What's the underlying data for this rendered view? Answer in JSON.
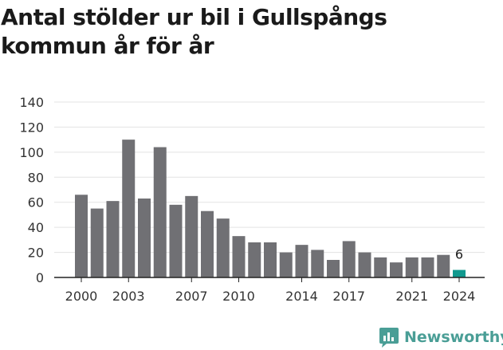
{
  "title": "Antal stölder ur bil i Gullspångs kommun år för år",
  "chart_data": {
    "type": "bar",
    "title": "Antal stölder ur bil i Gullspångs kommun år för år",
    "xlabel": "",
    "ylabel": "",
    "categories": [
      "2000",
      "2001",
      "2002",
      "2003",
      "2004",
      "2005",
      "2006",
      "2007",
      "2008",
      "2009",
      "2010",
      "2011",
      "2012",
      "2013",
      "2014",
      "2015",
      "2016",
      "2017",
      "2018",
      "2019",
      "2020",
      "2021",
      "2022",
      "2023",
      "2024"
    ],
    "values": [
      66,
      55,
      61,
      110,
      63,
      104,
      58,
      65,
      53,
      47,
      33,
      28,
      28,
      20,
      26,
      22,
      14,
      29,
      20,
      16,
      12,
      16,
      16,
      18,
      6
    ],
    "x_tick_labels": [
      "2000",
      "2003",
      "2007",
      "2010",
      "2014",
      "2017",
      "2021",
      "2024"
    ],
    "y_ticks": [
      0,
      20,
      40,
      60,
      80,
      100,
      120,
      140
    ],
    "ylim": [
      0,
      140
    ],
    "grid": true,
    "legend": "none",
    "data_labels": [
      {
        "category": "2024",
        "text": "6"
      }
    ],
    "colors": {
      "bar": "#707074",
      "highlight": "#11998e",
      "grid": "#e3e3e3"
    }
  },
  "brand": {
    "name": "Newsworthy",
    "color": "#4a9e96",
    "icon": "newsworthy-logo-icon"
  }
}
